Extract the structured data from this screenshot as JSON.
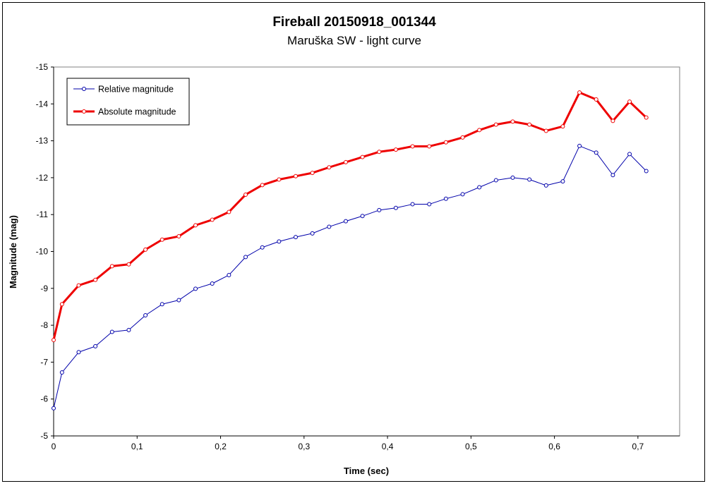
{
  "chart_data": {
    "type": "line",
    "title": "Fireball 20150918_001344",
    "subtitle": "Maruška SW - light curve",
    "xlabel": "Time (sec)",
    "ylabel": "Magnitude (mag)",
    "xlim": [
      0,
      0.75
    ],
    "ylim": [
      -5,
      -15
    ],
    "y_inverted": true,
    "x_ticks": [
      0,
      0.1,
      0.2,
      0.3,
      0.4,
      0.5,
      0.6,
      0.7
    ],
    "x_tick_labels": [
      "0",
      "0,1",
      "0,2",
      "0,3",
      "0,4",
      "0,5",
      "0,6",
      "0,7"
    ],
    "y_ticks": [
      -15,
      -14,
      -13,
      -12,
      -11,
      -10,
      -9,
      -8,
      -7,
      -6,
      -5
    ],
    "y_tick_labels": [
      "-15",
      "-14",
      "-13",
      "-12",
      "-11",
      "-10",
      "-9",
      "-8",
      "-7",
      "-6",
      "-5"
    ],
    "grid": false,
    "legend_position": "top-left",
    "x": [
      0,
      0.01,
      0.03,
      0.05,
      0.07,
      0.09,
      0.11,
      0.13,
      0.15,
      0.17,
      0.19,
      0.21,
      0.23,
      0.25,
      0.27,
      0.29,
      0.31,
      0.33,
      0.35,
      0.37,
      0.39,
      0.41,
      0.43,
      0.45,
      0.47,
      0.49,
      0.51,
      0.53,
      0.55,
      0.57,
      0.59,
      0.61,
      0.63,
      0.65,
      0.67,
      0.69,
      0.71
    ],
    "series": [
      {
        "name": "Relative magnitude",
        "color": "#0000aa",
        "line_width": 1,
        "values": [
          -5.75,
          -6.72,
          -7.27,
          -7.43,
          -7.82,
          -7.87,
          -8.27,
          -8.57,
          -8.68,
          -8.99,
          -9.13,
          -9.36,
          -9.85,
          -10.11,
          -10.27,
          -10.39,
          -10.49,
          -10.67,
          -10.82,
          -10.96,
          -11.12,
          -11.18,
          -11.28,
          -11.28,
          -11.43,
          -11.55,
          -11.74,
          -11.93,
          -12.0,
          -11.95,
          -11.79,
          -11.9,
          -12.86,
          -12.68,
          -12.07,
          -12.64,
          -12.18
        ]
      },
      {
        "name": "Absolute magnitude",
        "color": "#ee0000",
        "line_width": 3,
        "values": [
          -7.6,
          -8.57,
          -9.08,
          -9.23,
          -9.6,
          -9.65,
          -10.05,
          -10.32,
          -10.41,
          -10.71,
          -10.86,
          -11.07,
          -11.54,
          -11.8,
          -11.95,
          -12.04,
          -12.13,
          -12.28,
          -12.42,
          -12.56,
          -12.7,
          -12.76,
          -12.85,
          -12.85,
          -12.96,
          -13.09,
          -13.29,
          -13.44,
          -13.52,
          -13.44,
          -13.27,
          -13.39,
          -14.31,
          -14.12,
          -13.54,
          -14.06,
          -13.63
        ]
      }
    ]
  }
}
